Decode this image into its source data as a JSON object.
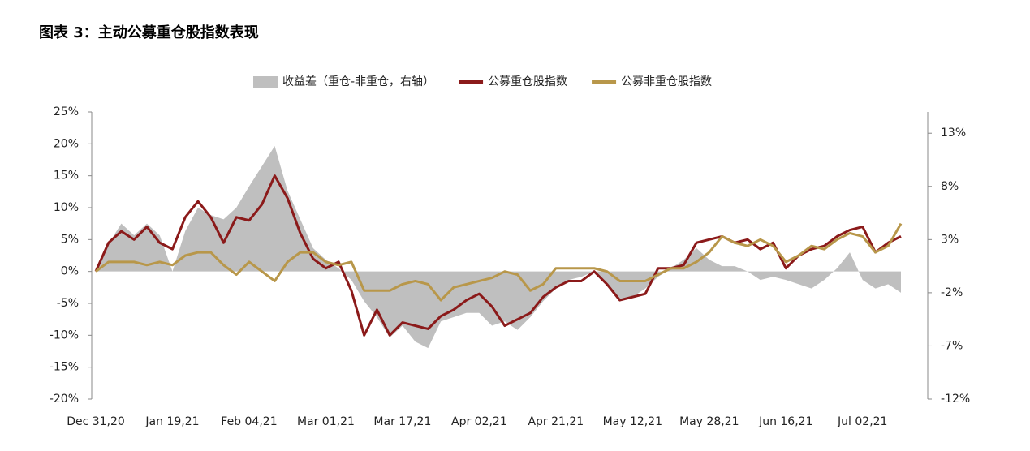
{
  "chart_data": {
    "type": "line",
    "title": "图表 3：主动公募重仓股指数表现",
    "categories": [
      "Dec 31,20",
      null,
      null,
      null,
      null,
      null,
      "Jan 19,21",
      null,
      null,
      null,
      null,
      null,
      "Feb 04,21",
      null,
      null,
      null,
      null,
      null,
      "Mar 01,21",
      null,
      null,
      null,
      null,
      null,
      "Mar 17,21",
      null,
      null,
      null,
      null,
      null,
      "Apr 02,21",
      null,
      null,
      null,
      null,
      null,
      "Apr 21,21",
      null,
      null,
      null,
      null,
      null,
      "May 12,21",
      null,
      null,
      null,
      null,
      null,
      "May 28,21",
      null,
      null,
      null,
      null,
      null,
      "Jun 16,21",
      null,
      null,
      null,
      null,
      null,
      "Jul 02,21",
      null,
      null,
      null
    ],
    "series": [
      {
        "name": "收益差（重仓-非重仓，右轴）",
        "type": "area",
        "axis": "y2",
        "color": "#bfbfbf",
        "values": [
          0,
          2.6,
          4.5,
          3.4,
          4.5,
          3.4,
          0,
          3.8,
          6,
          5.3,
          4.9,
          6,
          8,
          9.9,
          11.8,
          7.6,
          4.9,
          2.2,
          1.1,
          0.3,
          -0.8,
          -2.8,
          -4.3,
          -6.2,
          -5.1,
          -6.6,
          -7.2,
          -4.7,
          -4.3,
          -3.9,
          -3.9,
          -5.1,
          -4.7,
          -5.5,
          -4.3,
          -2.8,
          -1.6,
          -0.8,
          -0.5,
          0,
          -1.2,
          -2.8,
          -2.4,
          -1.6,
          -0.5,
          0.3,
          1.1,
          2.2,
          1.1,
          0.5,
          0.5,
          0,
          -0.8,
          -0.5,
          -0.8,
          -1.2,
          -1.6,
          -0.8,
          0.3,
          1.8,
          -0.8,
          -1.6,
          -1.2,
          -2
        ]
      },
      {
        "name": "公募重仓股指数",
        "type": "line",
        "color": "#8b1a1a",
        "values": [
          0,
          4.5,
          6.3,
          5,
          7,
          4.5,
          3.5,
          8.5,
          11,
          8.5,
          4.5,
          8.5,
          8,
          10.5,
          15,
          11.5,
          6,
          2,
          0.5,
          1.5,
          -3,
          -10,
          -6,
          -10,
          -8,
          -8.5,
          -9,
          -7,
          -6,
          -4.5,
          -3.5,
          -5.5,
          -8.5,
          -7.5,
          -6.5,
          -4,
          -2.5,
          -1.5,
          -1.5,
          0,
          -2,
          -4.5,
          -4,
          -3.5,
          0.5,
          0.5,
          1,
          4.5,
          5,
          5.5,
          4.5,
          5,
          3.5,
          4.5,
          0.5,
          2.5,
          3.5,
          4,
          5.5,
          6.5,
          7,
          3,
          4.5,
          5.5
        ]
      },
      {
        "name": "公募非重仓股指数",
        "type": "line",
        "color": "#b8974a",
        "values": [
          0,
          1.5,
          1.5,
          1.5,
          1,
          1.5,
          1,
          2.5,
          3,
          3,
          1,
          -0.5,
          1.5,
          0,
          -1.5,
          1.5,
          3,
          3,
          1.5,
          1,
          1.5,
          -3,
          -3,
          -3,
          -2,
          -1.5,
          -2,
          -4.5,
          -2.5,
          -2,
          -1.5,
          -1,
          0,
          -0.5,
          -3,
          -2,
          0.5,
          0.5,
          0.5,
          0.5,
          0,
          -1.5,
          -1.5,
          -1.5,
          -0.5,
          0.5,
          0.5,
          1.5,
          3,
          5.5,
          4.5,
          4,
          5,
          4,
          1.5,
          2.5,
          4,
          3.5,
          5,
          6,
          5.5,
          3,
          4,
          7.5
        ]
      }
    ],
    "ylim": [
      -20,
      25
    ],
    "yticks": [
      {
        "value": -20,
        "label": "-20%"
      },
      {
        "value": -15,
        "label": "-15%"
      },
      {
        "value": -10,
        "label": "-10%"
      },
      {
        "value": -5,
        "label": "-5%"
      },
      {
        "value": 0,
        "label": "0%"
      },
      {
        "value": 5,
        "label": "5%"
      },
      {
        "value": 10,
        "label": "10%"
      },
      {
        "value": 15,
        "label": "15%"
      },
      {
        "value": 20,
        "label": "20%"
      },
      {
        "value": 25,
        "label": "25%"
      }
    ],
    "y2lim": [
      -12,
      15
    ],
    "y2ticks": [
      {
        "value": -12,
        "label": "-12%"
      },
      {
        "value": -7,
        "label": "-7%"
      },
      {
        "value": -2,
        "label": "-2%"
      },
      {
        "value": 3,
        "label": "3%"
      },
      {
        "value": 8,
        "label": "8%"
      },
      {
        "value": 13,
        "label": "13%"
      }
    ],
    "legend": "top"
  }
}
